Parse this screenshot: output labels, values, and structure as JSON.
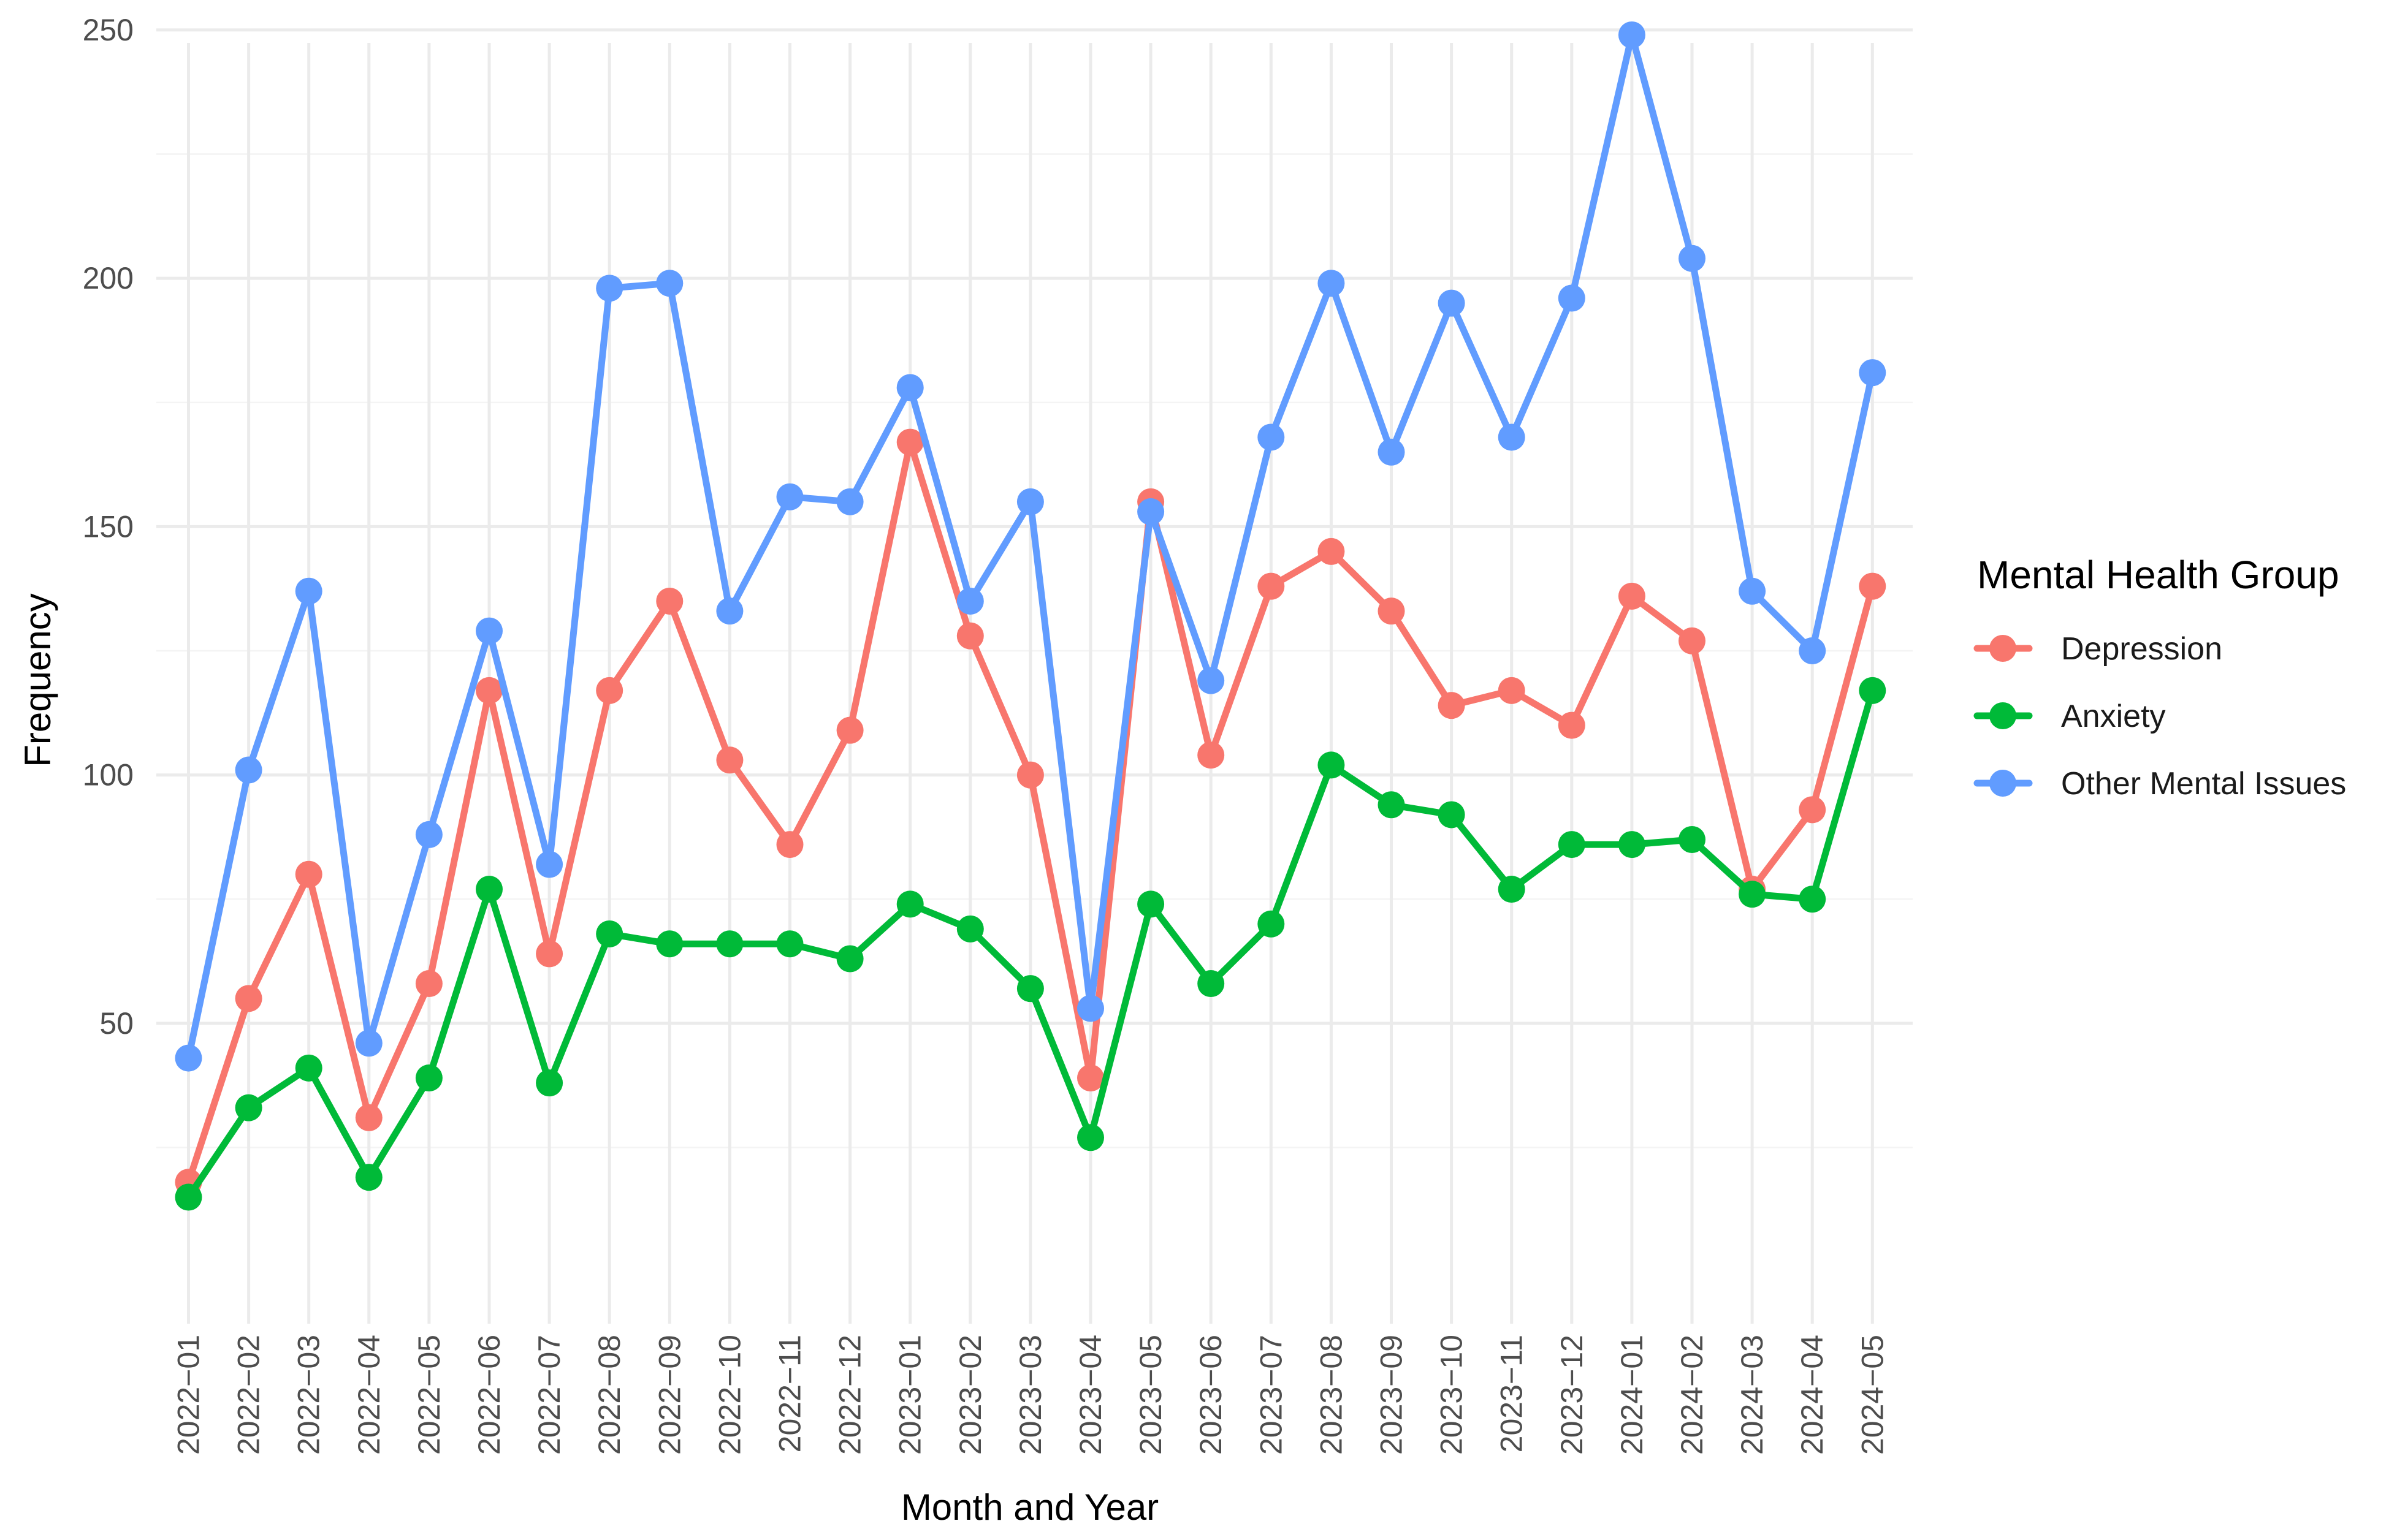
{
  "chart_data": {
    "type": "line",
    "xlabel": "Month and Year",
    "ylabel": "Frequency",
    "ylim": [
      5,
      260
    ],
    "y_ticks": [
      50,
      100,
      150,
      200,
      250
    ],
    "grid": true,
    "legend_position": "right",
    "legend_title": "Mental Health Group",
    "categories": [
      "2022−01",
      "2022−02",
      "2022−03",
      "2022−04",
      "2022−05",
      "2022−06",
      "2022−07",
      "2022−08",
      "2022−09",
      "2022−10",
      "2022−11",
      "2022−12",
      "2023−01",
      "2023−02",
      "2023−03",
      "2023−04",
      "2023−05",
      "2023−06",
      "2023−07",
      "2023−08",
      "2023−09",
      "2023−10",
      "2023−11",
      "2023−12",
      "2024−01",
      "2024−02",
      "2024−03",
      "2024−04",
      "2024−05"
    ],
    "series": [
      {
        "name": "Depression",
        "color": "#F8766D",
        "values": [
          18,
          55,
          80,
          31,
          58,
          117,
          64,
          117,
          135,
          103,
          86,
          109,
          167,
          128,
          100,
          39,
          155,
          104,
          138,
          145,
          133,
          114,
          117,
          110,
          136,
          127,
          77,
          93,
          138
        ]
      },
      {
        "name": "Anxiety",
        "color": "#00BA38",
        "values": [
          15,
          33,
          41,
          19,
          39,
          77,
          38,
          68,
          66,
          66,
          66,
          63,
          74,
          69,
          57,
          27,
          74,
          58,
          70,
          102,
          94,
          92,
          77,
          86,
          86,
          87,
          76,
          75,
          117
        ]
      },
      {
        "name": "Other Mental Issues",
        "color": "#619CFF",
        "values": [
          43,
          101,
          137,
          46,
          88,
          129,
          82,
          198,
          199,
          133,
          156,
          155,
          178,
          135,
          155,
          53,
          153,
          119,
          168,
          199,
          165,
          195,
          168,
          196,
          249,
          204,
          137,
          125,
          181
        ]
      }
    ]
  }
}
